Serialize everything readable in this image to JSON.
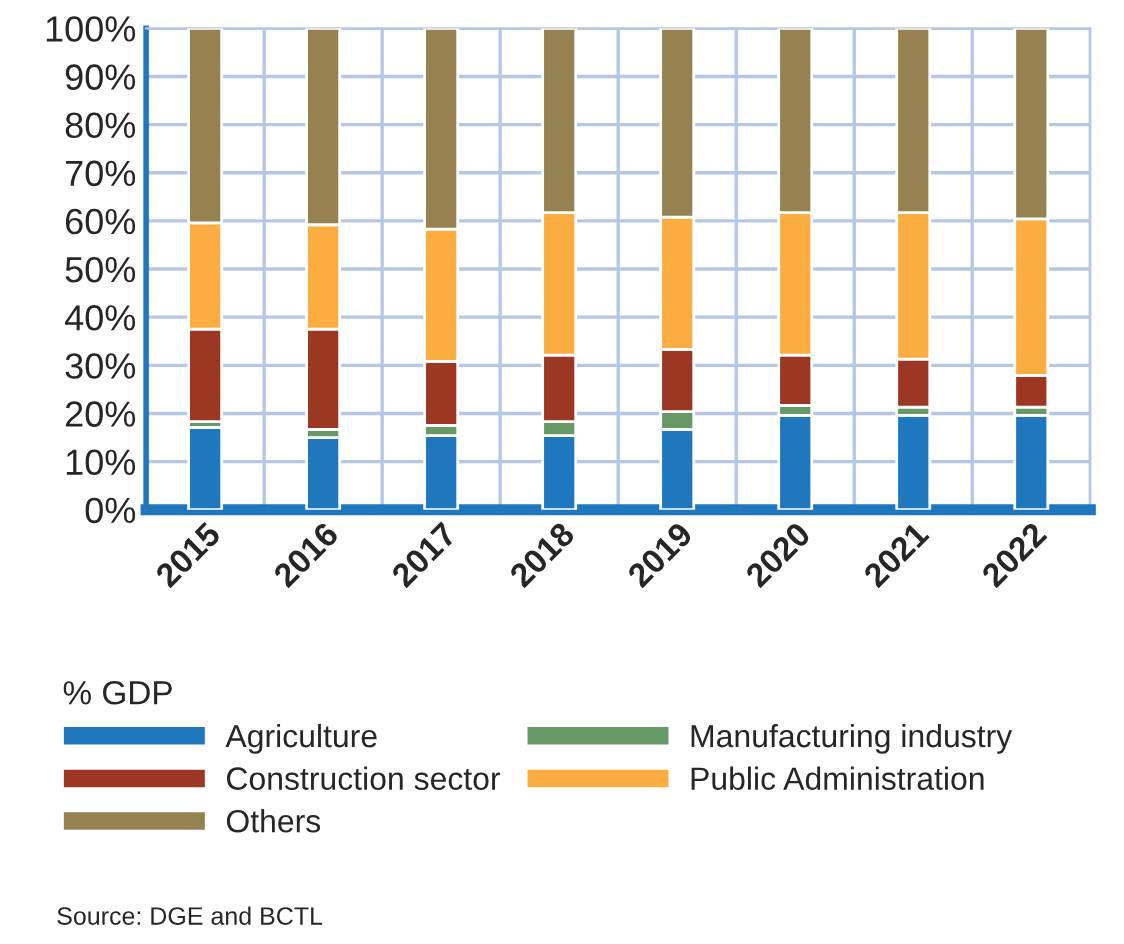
{
  "chart_data": {
    "type": "bar",
    "stacked": true,
    "categories": [
      "2015",
      "2016",
      "2017",
      "2018",
      "2019",
      "2020",
      "2021",
      "2022"
    ],
    "series": [
      {
        "name": "Agriculture",
        "color": "#1f77bd",
        "values": [
          17.1,
          15.0,
          15.4,
          15.4,
          16.7,
          19.6,
          19.6,
          19.6
        ]
      },
      {
        "name": "Manufacturing industry",
        "color": "#669966",
        "values": [
          1.2,
          1.7,
          2.1,
          2.9,
          3.7,
          2.1,
          1.7,
          1.7
        ]
      },
      {
        "name": "Construction sector",
        "color": "#9b3722",
        "values": [
          19.2,
          20.8,
          13.3,
          13.8,
          12.9,
          10.4,
          10.0,
          6.6
        ]
      },
      {
        "name": "Public Administration",
        "color": "#fbad42",
        "values": [
          22.1,
          21.7,
          27.5,
          29.6,
          27.5,
          29.6,
          30.4,
          32.5
        ]
      },
      {
        "name": "Others",
        "color": "#958250",
        "values": [
          40.4,
          40.8,
          41.7,
          38.3,
          39.2,
          38.3,
          38.3,
          39.6
        ]
      }
    ],
    "ylim": [
      0,
      100
    ],
    "yticks": [
      {
        "value": 0,
        "label": "0%"
      },
      {
        "value": 10,
        "label": "10%"
      },
      {
        "value": 20,
        "label": "20%"
      },
      {
        "value": 30,
        "label": "30%"
      },
      {
        "value": 40,
        "label": "40%"
      },
      {
        "value": 50,
        "label": "50%"
      },
      {
        "value": 60,
        "label": "60%"
      },
      {
        "value": 70,
        "label": "70%"
      },
      {
        "value": 80,
        "label": "80%"
      },
      {
        "value": 90,
        "label": "90%"
      },
      {
        "value": 100,
        "label": "100%"
      }
    ],
    "grid": true,
    "legend": "bottom",
    "legend_title": "% GDP",
    "annotations": [
      "Source: DGE and BCTL"
    ]
  }
}
